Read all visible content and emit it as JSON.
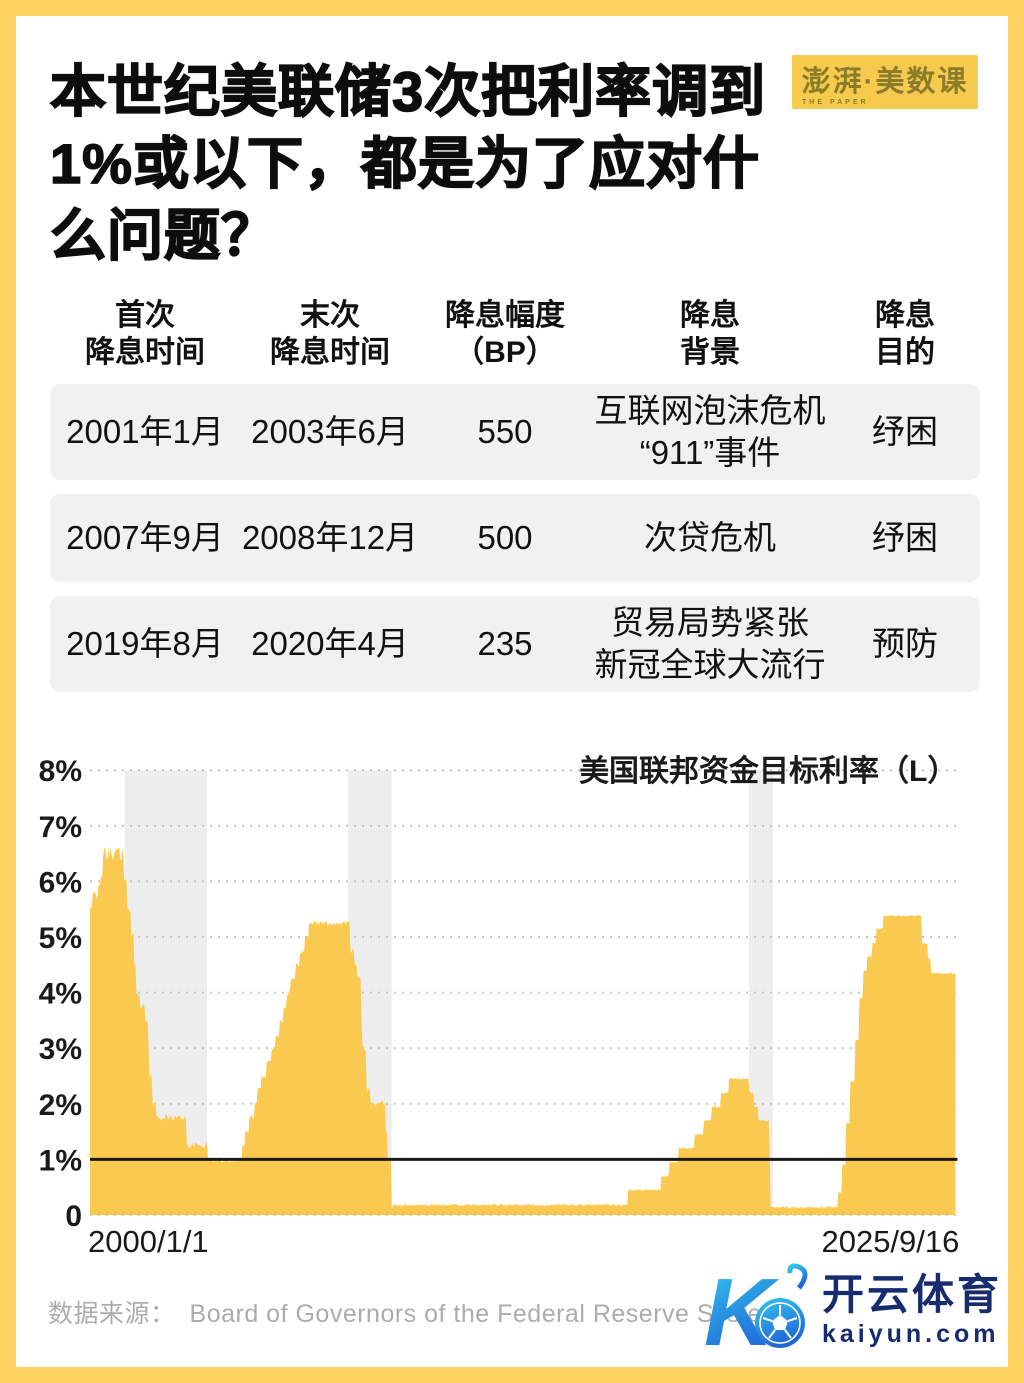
{
  "page": {
    "frame_color": "#FFD262",
    "background": "#FFFFFF"
  },
  "header": {
    "title_lines": [
      "本世纪美联储3次把利率调到",
      "1%或以下，都是为了应对什",
      "么问题？"
    ],
    "logo": {
      "text": "澎湃·美数课",
      "subtext": "THE PAPER",
      "bg": "#F6CB4D",
      "color": "#8C7B2A"
    }
  },
  "table": {
    "headers": [
      "首次\n降息时间",
      "末次\n降息时间",
      "降息幅度\n（BP）",
      "降息\n背景",
      "降息\n目的"
    ],
    "rows": [
      {
        "first": "2001年1月",
        "last": "2003年6月",
        "bp": "550",
        "background": "互联网泡沫危机\n“911”事件",
        "purpose": "纾困"
      },
      {
        "first": "2007年9月",
        "last": "2008年12月",
        "bp": "500",
        "background": "次贷危机",
        "purpose": "纾困"
      },
      {
        "first": "2019年8月",
        "last": "2020年4月",
        "bp": "235",
        "background": "贸易局势紧张\n新冠全球大流行",
        "purpose": "预防"
      }
    ]
  },
  "chart_data": {
    "type": "area",
    "legend": "美国联邦资金目标利率（L）",
    "legend_position": "top-right",
    "x_start_label": "2000/1/1",
    "x_end_label": "2025/9/16",
    "y_tick_labels": [
      "8%",
      "7%",
      "6%",
      "5%",
      "4%",
      "3%",
      "2%",
      "1%",
      "0"
    ],
    "y_tick_values": [
      8,
      7,
      6,
      5,
      4,
      3,
      2,
      1,
      0
    ],
    "ylim": [
      0,
      8
    ],
    "x_years": [
      2000.0,
      2025.71
    ],
    "grid": true,
    "threshold_percent": 1,
    "shaded_periods": [
      [
        2001.04,
        2003.48
      ],
      [
        2007.67,
        2008.96
      ],
      [
        2019.58,
        2020.29
      ]
    ],
    "series": [
      {
        "name": "美国联邦资金目标利率",
        "steps": [
          [
            2000.0,
            5.5
          ],
          [
            2000.09,
            5.75
          ],
          [
            2000.22,
            6.0
          ],
          [
            2000.38,
            6.5
          ],
          [
            2001.01,
            6.0
          ],
          [
            2001.09,
            5.5
          ],
          [
            2001.22,
            5.0
          ],
          [
            2001.3,
            4.5
          ],
          [
            2001.37,
            4.0
          ],
          [
            2001.49,
            3.75
          ],
          [
            2001.64,
            3.5
          ],
          [
            2001.71,
            3.0
          ],
          [
            2001.76,
            2.5
          ],
          [
            2001.85,
            2.0
          ],
          [
            2001.95,
            1.75
          ],
          [
            2002.85,
            1.25
          ],
          [
            2003.48,
            1.0
          ],
          [
            2004.5,
            1.25
          ],
          [
            2004.61,
            1.5
          ],
          [
            2004.72,
            1.75
          ],
          [
            2004.86,
            2.0
          ],
          [
            2004.96,
            2.25
          ],
          [
            2005.09,
            2.5
          ],
          [
            2005.24,
            2.75
          ],
          [
            2005.37,
            3.0
          ],
          [
            2005.5,
            3.25
          ],
          [
            2005.61,
            3.5
          ],
          [
            2005.73,
            3.75
          ],
          [
            2005.84,
            4.0
          ],
          [
            2005.96,
            4.25
          ],
          [
            2006.09,
            4.5
          ],
          [
            2006.23,
            4.75
          ],
          [
            2006.37,
            5.0
          ],
          [
            2006.49,
            5.25
          ],
          [
            2007.71,
            4.75
          ],
          [
            2007.83,
            4.5
          ],
          [
            2007.94,
            4.25
          ],
          [
            2008.06,
            3.5
          ],
          [
            2008.09,
            3.0
          ],
          [
            2008.21,
            2.25
          ],
          [
            2008.33,
            2.0
          ],
          [
            2008.77,
            1.5
          ],
          [
            2008.83,
            1.0
          ],
          [
            2008.96,
            0.18
          ],
          [
            2015.96,
            0.45
          ],
          [
            2016.96,
            0.7
          ],
          [
            2017.21,
            0.95
          ],
          [
            2017.46,
            1.2
          ],
          [
            2017.96,
            1.45
          ],
          [
            2018.22,
            1.7
          ],
          [
            2018.47,
            1.95
          ],
          [
            2018.73,
            2.2
          ],
          [
            2018.97,
            2.45
          ],
          [
            2019.58,
            2.2
          ],
          [
            2019.72,
            1.95
          ],
          [
            2019.83,
            1.7
          ],
          [
            2020.17,
            1.2
          ],
          [
            2020.21,
            0.14
          ],
          [
            2022.21,
            0.4
          ],
          [
            2022.34,
            0.9
          ],
          [
            2022.46,
            1.65
          ],
          [
            2022.56,
            2.4
          ],
          [
            2022.73,
            3.15
          ],
          [
            2022.84,
            3.9
          ],
          [
            2022.96,
            4.4
          ],
          [
            2023.09,
            4.65
          ],
          [
            2023.23,
            4.9
          ],
          [
            2023.34,
            5.15
          ],
          [
            2023.56,
            5.38
          ],
          [
            2024.71,
            4.88
          ],
          [
            2024.87,
            4.62
          ],
          [
            2024.96,
            4.35
          ]
        ]
      }
    ],
    "colors": {
      "area": "#FACA50",
      "shade": "#EDEDED",
      "grid": "#C4C4C4",
      "threshold": "#1A1A1A",
      "text": "#1A1A1A"
    }
  },
  "footer": {
    "source_label": "数据来源：",
    "source": "Board of Governors of the Federal Reserve System"
  },
  "watermark": {
    "monogram": "K",
    "brand": "开云体育",
    "domain": "kaiyun.com",
    "colors": {
      "from": "#35C8F0",
      "to": "#1F66D6",
      "text": "#172C6E"
    }
  }
}
